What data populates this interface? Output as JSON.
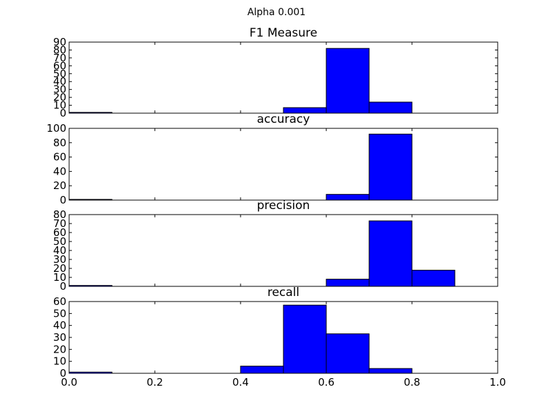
{
  "figure": {
    "suptitle": "Alpha 0.001"
  },
  "style": {
    "bar_color": "#0000ff",
    "edge_color": "#000000",
    "axes_color": "#000000"
  },
  "chart_data": [
    {
      "type": "bar",
      "title": "F1 Measure",
      "bin_edges": [
        0.0,
        0.1,
        0.2,
        0.3,
        0.4,
        0.5,
        0.6,
        0.7,
        0.8,
        0.9,
        1.0
      ],
      "values": [
        1,
        0,
        0,
        0,
        0,
        7,
        82,
        14,
        0,
        0
      ],
      "xlim": [
        0.0,
        1.0
      ],
      "ylim": [
        0,
        90
      ],
      "yticks": [
        0,
        10,
        20,
        30,
        40,
        50,
        60,
        70,
        80,
        90
      ],
      "show_xticklabels": false
    },
    {
      "type": "bar",
      "title": "accuracy",
      "bin_edges": [
        0.0,
        0.1,
        0.2,
        0.3,
        0.4,
        0.5,
        0.6,
        0.7,
        0.8,
        0.9,
        1.0
      ],
      "values": [
        1,
        0,
        0,
        0,
        0,
        0,
        8,
        92,
        0,
        0
      ],
      "xlim": [
        0.0,
        1.0
      ],
      "ylim": [
        0,
        100
      ],
      "yticks": [
        0,
        20,
        40,
        60,
        80,
        100
      ],
      "show_xticklabels": false
    },
    {
      "type": "bar",
      "title": "precision",
      "bin_edges": [
        0.0,
        0.1,
        0.2,
        0.3,
        0.4,
        0.5,
        0.6,
        0.7,
        0.8,
        0.9,
        1.0
      ],
      "values": [
        1,
        0,
        0,
        0,
        0,
        0,
        8,
        73,
        18,
        0
      ],
      "xlim": [
        0.0,
        1.0
      ],
      "ylim": [
        0,
        80
      ],
      "yticks": [
        0,
        10,
        20,
        30,
        40,
        50,
        60,
        70,
        80
      ],
      "show_xticklabels": false
    },
    {
      "type": "bar",
      "title": "recall",
      "bin_edges": [
        0.0,
        0.1,
        0.2,
        0.3,
        0.4,
        0.5,
        0.6,
        0.7,
        0.8,
        0.9,
        1.0
      ],
      "values": [
        1,
        0,
        0,
        0,
        6,
        57,
        33,
        4,
        0,
        0
      ],
      "xlim": [
        0.0,
        1.0
      ],
      "ylim": [
        0,
        60
      ],
      "yticks": [
        0,
        10,
        20,
        30,
        40,
        50,
        60
      ],
      "xticks": [
        "0.0",
        "0.2",
        "0.4",
        "0.6",
        "0.8",
        "1.0"
      ],
      "show_xticklabels": true
    }
  ]
}
